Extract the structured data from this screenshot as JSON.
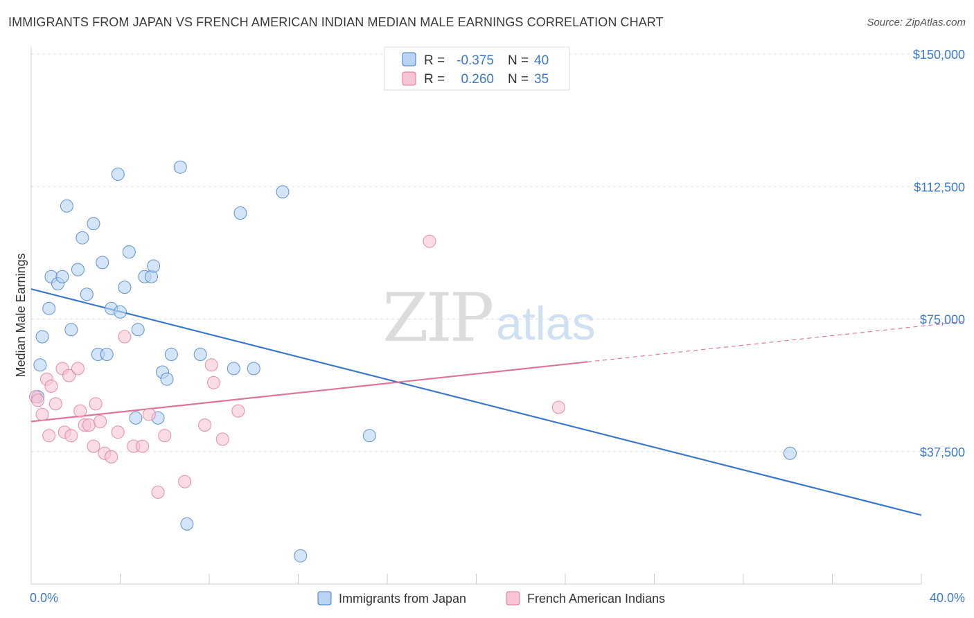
{
  "title": "IMMIGRANTS FROM JAPAN VS FRENCH AMERICAN INDIAN MEDIAN MALE EARNINGS CORRELATION CHART",
  "source": "Source: ZipAtlas.com",
  "watermark": {
    "zip": "ZIP",
    "atlas": "atlas"
  },
  "colors": {
    "blue": "#3b78c9",
    "blue_fill": "#b9d3f3",
    "pink": "#e0739a",
    "pink_fill": "#f7c5d3"
  },
  "legend": {
    "r_label": "R =",
    "n_label": "N =",
    "rows": [
      {
        "r": "-0.375",
        "n": "40"
      },
      {
        "r": "0.260",
        "n": "35"
      }
    ]
  },
  "chart_data": {
    "type": "scatter",
    "title": "IMMIGRANTS FROM JAPAN VS FRENCH AMERICAN INDIAN MEDIAN MALE EARNINGS CORRELATION CHART",
    "xlabel": "",
    "ylabel": "Median Male Earnings",
    "xlim": [
      0,
      40
    ],
    "ylim": [
      0,
      155000
    ],
    "x_tick_labels": [
      "0.0%",
      "40.0%"
    ],
    "y_ticks": [
      37500,
      75000,
      112500,
      150000
    ],
    "y_tick_labels": [
      "$37,500",
      "$75,000",
      "$112,500",
      "$150,000"
    ],
    "series": [
      {
        "name": "Immigrants from Japan",
        "color": "#3b78c9",
        "points": [
          [
            0.3,
            53000
          ],
          [
            0.4,
            62000
          ],
          [
            0.5,
            70000
          ],
          [
            0.8,
            78000
          ],
          [
            0.9,
            87000
          ],
          [
            1.2,
            85000
          ],
          [
            1.4,
            87000
          ],
          [
            1.6,
            107000
          ],
          [
            1.8,
            72000
          ],
          [
            2.1,
            89000
          ],
          [
            2.3,
            98000
          ],
          [
            2.5,
            82000
          ],
          [
            2.8,
            102000
          ],
          [
            3.0,
            65000
          ],
          [
            3.2,
            91000
          ],
          [
            3.4,
            65000
          ],
          [
            3.6,
            78000
          ],
          [
            3.9,
            116000
          ],
          [
            4.0,
            77000
          ],
          [
            4.2,
            84000
          ],
          [
            4.4,
            94000
          ],
          [
            4.7,
            47000
          ],
          [
            4.8,
            72000
          ],
          [
            5.1,
            87000
          ],
          [
            5.4,
            87000
          ],
          [
            5.5,
            90000
          ],
          [
            5.7,
            47000
          ],
          [
            5.9,
            60000
          ],
          [
            6.1,
            58000
          ],
          [
            6.3,
            65000
          ],
          [
            6.7,
            118000
          ],
          [
            7.0,
            17000
          ],
          [
            7.6,
            65000
          ],
          [
            9.1,
            61000
          ],
          [
            9.4,
            105000
          ],
          [
            10.0,
            61000
          ],
          [
            11.3,
            111000
          ],
          [
            12.1,
            8000
          ],
          [
            15.2,
            42000
          ],
          [
            34.1,
            37000
          ]
        ],
        "trend": {
          "x": [
            0,
            40
          ],
          "y": [
            83500,
            19500
          ]
        }
      },
      {
        "name": "French American Indians",
        "color": "#e0739a",
        "points": [
          [
            0.2,
            53000
          ],
          [
            0.5,
            48000
          ],
          [
            0.7,
            58000
          ],
          [
            0.8,
            42000
          ],
          [
            0.9,
            56000
          ],
          [
            1.1,
            51000
          ],
          [
            1.4,
            61000
          ],
          [
            1.5,
            43000
          ],
          [
            1.7,
            59000
          ],
          [
            1.8,
            42000
          ],
          [
            2.1,
            61000
          ],
          [
            2.2,
            49000
          ],
          [
            2.4,
            45000
          ],
          [
            2.6,
            45000
          ],
          [
            2.8,
            39000
          ],
          [
            2.9,
            51000
          ],
          [
            3.1,
            46000
          ],
          [
            3.3,
            37000
          ],
          [
            3.6,
            36000
          ],
          [
            3.9,
            43000
          ],
          [
            4.2,
            70000
          ],
          [
            4.6,
            39000
          ],
          [
            5.0,
            39000
          ],
          [
            5.3,
            48000
          ],
          [
            5.7,
            26000
          ],
          [
            6.0,
            42000
          ],
          [
            6.9,
            29000
          ],
          [
            7.8,
            45000
          ],
          [
            8.1,
            62000
          ],
          [
            8.2,
            57000
          ],
          [
            8.6,
            41000
          ],
          [
            9.3,
            49000
          ],
          [
            17.9,
            97000
          ],
          [
            23.7,
            50000
          ],
          [
            0.3,
            52000
          ]
        ],
        "trend": {
          "x": [
            0,
            40
          ],
          "y": [
            46000,
            73000
          ]
        },
        "trend_solid_until": 25
      }
    ]
  }
}
